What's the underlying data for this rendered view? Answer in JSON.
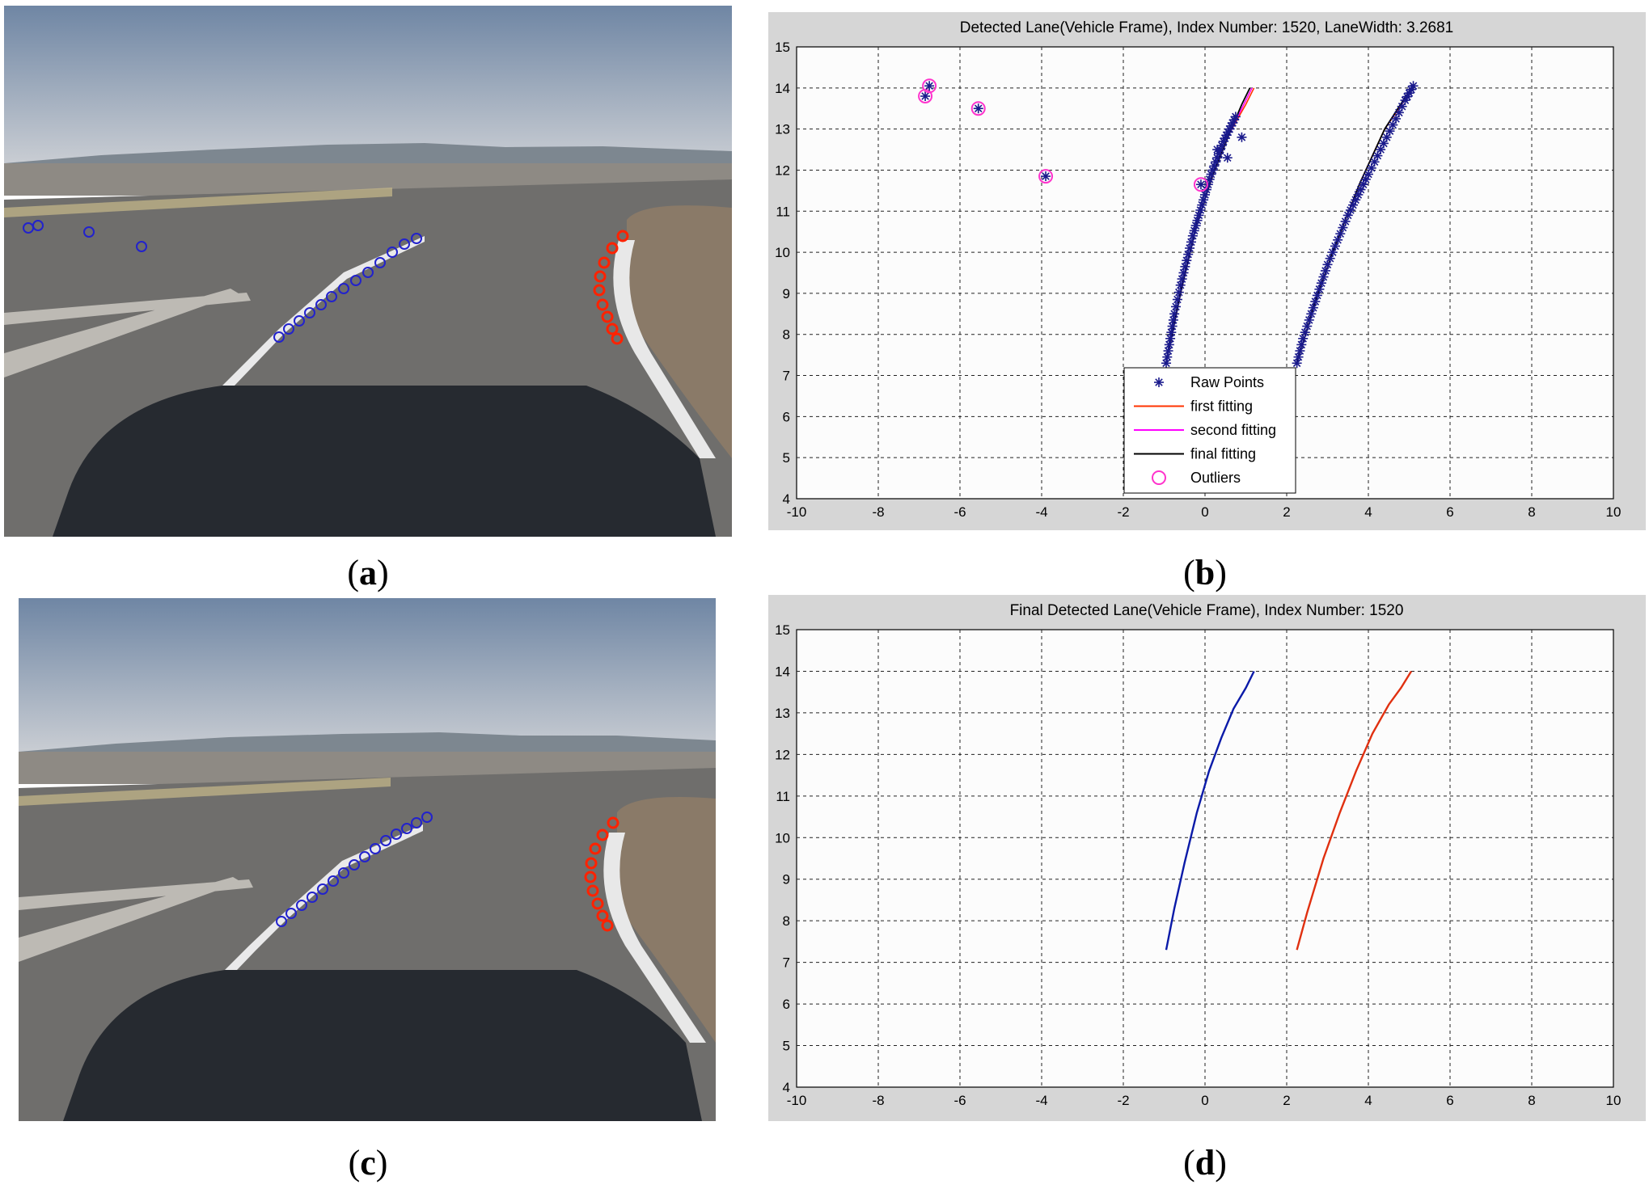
{
  "captions": {
    "a": {
      "open": "(",
      "letter": "a",
      "close": ")"
    },
    "b": {
      "open": "(",
      "letter": "b",
      "close": ")"
    },
    "c": {
      "open": "(",
      "letter": "c",
      "close": ")"
    },
    "d": {
      "open": "(",
      "letter": "d",
      "close": ")"
    }
  },
  "colors": {
    "sky_top": "#6f86a4",
    "sky_bottom": "#c7cdd6",
    "road": "#6f6e6c",
    "hood": "#262a30",
    "left_markers": "#2222cc",
    "right_markers": "#ff2200",
    "raw_points": "#1a1a8c",
    "first_fitting": "#ff3300",
    "second_fitting": "#ff00ff",
    "final_fitting": "#000000",
    "outliers": "#ff33cc",
    "final_left": "#0a1aa8",
    "final_right": "#e03010"
  },
  "chart_data": [
    {
      "type": "scatter",
      "panel": "b",
      "title": "Detected Lane(Vehicle Frame), Index Number: 1520, LaneWidth: 3.2681",
      "xlabel": "",
      "ylabel": "",
      "xlim": [
        -10,
        10
      ],
      "ylim": [
        4,
        15
      ],
      "xticks": [
        "-10",
        "-8",
        "-6",
        "-4",
        "-2",
        "0",
        "2",
        "4",
        "6",
        "8",
        "10"
      ],
      "yticks": [
        "4",
        "5",
        "6",
        "7",
        "8",
        "9",
        "10",
        "11",
        "12",
        "13",
        "14",
        "15"
      ],
      "grid": true,
      "legend_position": "bottom-center",
      "legend": [
        "Raw Points",
        "first fitting",
        "second fitting",
        "final fitting",
        "Outliers"
      ],
      "series": [
        {
          "name": "Raw Points",
          "kind": "points",
          "left_lane": {
            "x": [
              -0.95,
              -0.85,
              -0.75,
              -0.6,
              -0.45,
              -0.3,
              -0.15,
              0.0,
              0.15,
              0.3,
              0.45,
              0.6,
              0.75
            ],
            "y": [
              7.3,
              7.9,
              8.5,
              9.2,
              9.8,
              10.4,
              10.9,
              11.4,
              11.9,
              12.3,
              12.7,
              13.0,
              13.3
            ]
          },
          "right_lane": {
            "x": [
              2.25,
              2.4,
              2.6,
              2.8,
              3.0,
              3.25,
              3.5,
              3.75,
              4.0,
              4.3,
              4.6,
              4.9,
              5.1
            ],
            "y": [
              7.3,
              7.9,
              8.5,
              9.1,
              9.7,
              10.3,
              10.9,
              11.4,
              11.9,
              12.5,
              13.1,
              13.7,
              14.05
            ]
          },
          "scattered": {
            "x": [
              0.3,
              0.55,
              0.9
            ],
            "y": [
              12.5,
              12.3,
              12.8
            ]
          }
        },
        {
          "name": "first fitting",
          "kind": "line",
          "left_lane": {
            "x": [
              -0.95,
              -0.6,
              -0.2,
              0.2,
              0.6,
              1.0,
              1.2
            ],
            "y": [
              7.3,
              9.0,
              10.7,
              11.9,
              12.9,
              13.6,
              14.0
            ]
          },
          "right_lane": {
            "x": [
              2.25,
              2.7,
              3.2,
              3.8,
              4.4,
              5.1
            ],
            "y": [
              7.3,
              8.8,
              10.2,
              11.7,
              13.0,
              14.0
            ]
          }
        },
        {
          "name": "second fitting",
          "kind": "line",
          "left_lane": {
            "x": [
              -0.95,
              -0.6,
              -0.2,
              0.2,
              0.6,
              0.95,
              1.15
            ],
            "y": [
              7.3,
              9.0,
              10.7,
              11.9,
              12.9,
              13.6,
              14.0
            ]
          }
        },
        {
          "name": "final fitting",
          "kind": "line",
          "left_lane": {
            "x": [
              -0.95,
              -0.6,
              -0.2,
              0.2,
              0.6,
              0.9,
              1.1
            ],
            "y": [
              7.3,
              9.0,
              10.7,
              11.9,
              12.9,
              13.6,
              14.0
            ]
          },
          "right_lane": {
            "x": [
              2.25,
              2.7,
              3.2,
              3.8,
              4.4,
              5.05
            ],
            "y": [
              7.3,
              8.8,
              10.2,
              11.7,
              13.0,
              14.0
            ]
          }
        },
        {
          "name": "Outliers",
          "kind": "points",
          "x": [
            -6.85,
            -6.75,
            -5.55,
            -3.9,
            -0.1
          ],
          "y": [
            13.8,
            14.05,
            13.5,
            11.85,
            11.65
          ]
        }
      ]
    },
    {
      "type": "line",
      "panel": "d",
      "title": "Final Detected Lane(Vehicle Frame), Index Number: 1520",
      "xlabel": "",
      "ylabel": "",
      "xlim": [
        -10,
        10
      ],
      "ylim": [
        4,
        15
      ],
      "xticks": [
        "-10",
        "-8",
        "-6",
        "-4",
        "-2",
        "0",
        "2",
        "4",
        "6",
        "8",
        "10"
      ],
      "yticks": [
        "4",
        "5",
        "6",
        "7",
        "8",
        "9",
        "10",
        "11",
        "12",
        "13",
        "14",
        "15"
      ],
      "grid": true,
      "series": [
        {
          "lane": "left",
          "x": [
            -0.95,
            -0.75,
            -0.5,
            -0.2,
            0.1,
            0.4,
            0.7,
            1.0,
            1.2
          ],
          "y": [
            7.3,
            8.3,
            9.4,
            10.6,
            11.6,
            12.4,
            13.1,
            13.6,
            14.0
          ]
        },
        {
          "lane": "right",
          "x": [
            2.25,
            2.5,
            2.9,
            3.3,
            3.7,
            4.1,
            4.5,
            4.8,
            5.05
          ],
          "y": [
            7.3,
            8.2,
            9.5,
            10.6,
            11.6,
            12.5,
            13.2,
            13.6,
            14.0
          ]
        }
      ]
    }
  ]
}
